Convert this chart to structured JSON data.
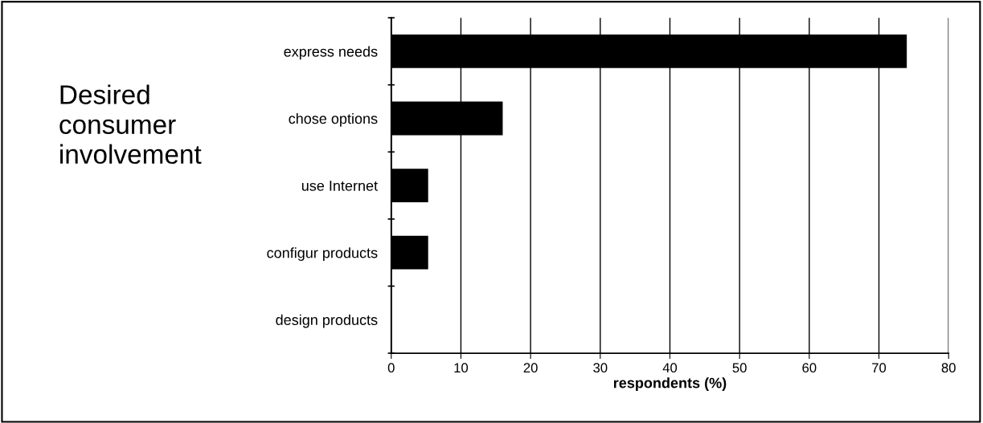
{
  "chart_data": {
    "type": "bar",
    "orientation": "horizontal",
    "title": "Desired consumer involvement",
    "categories": [
      "express needs",
      "chose options",
      "use Internet",
      "configur products",
      "design products"
    ],
    "values": [
      74,
      16,
      5.3,
      5.3,
      0
    ],
    "color": "#000000",
    "xlabel": "respondents (%)",
    "xlim": [
      0,
      80
    ],
    "xticks": [
      0,
      10,
      20,
      30,
      40,
      50,
      60,
      70,
      80
    ],
    "grid": "x",
    "legend": false
  }
}
